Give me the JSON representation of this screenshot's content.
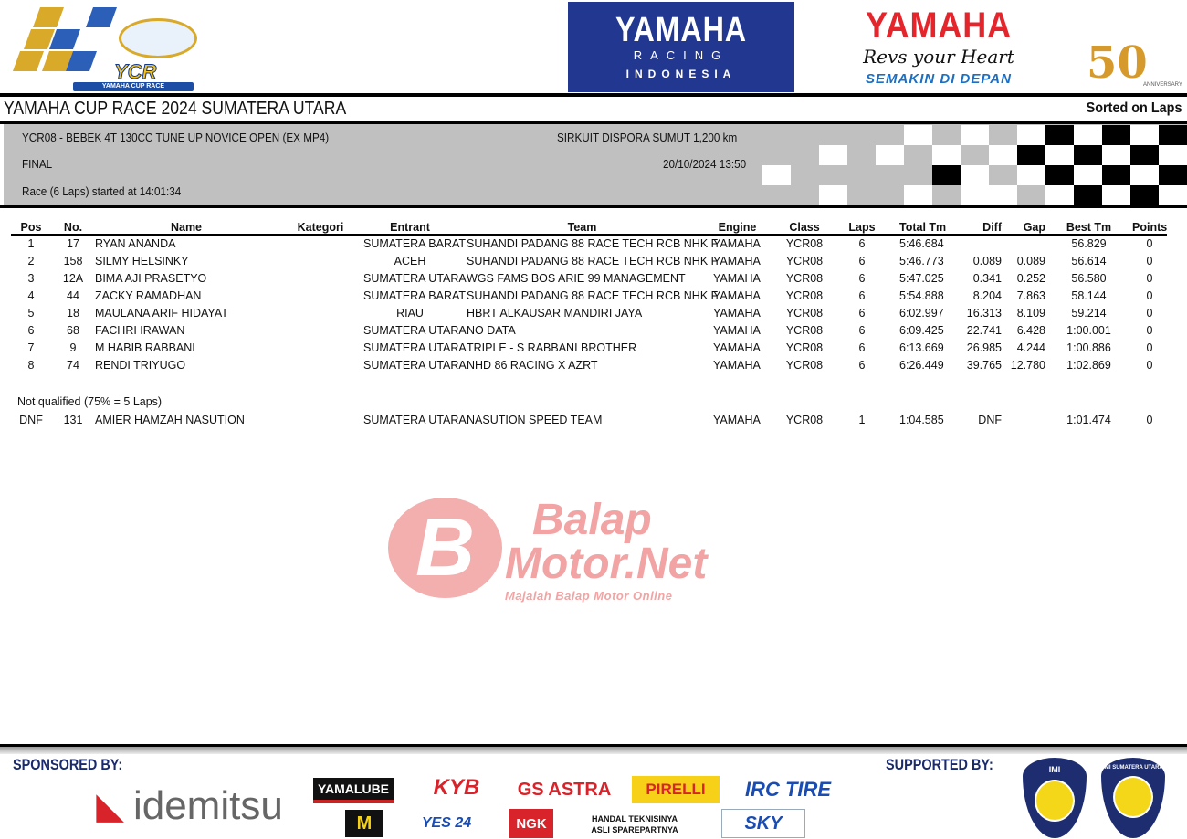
{
  "logos": {
    "ycr": {
      "text": "YCR",
      "subtitle": "YAMAHA CUP RACE"
    },
    "yamaha_racing": {
      "line1": "YAMAHA",
      "line2": "RACING",
      "line3": "INDONESIA"
    },
    "yamaha": {
      "brand": "YAMAHA",
      "tagline": "Revs your Heart",
      "slogan": "SEMAKIN DI DEPAN"
    },
    "anniversary": {
      "number": "50",
      "text": "ANNIVERSARY"
    }
  },
  "header": {
    "title": "YAMAHA CUP RACE 2024 SUMATERA UTARA",
    "sort_label": "Sorted on Laps"
  },
  "race_info": {
    "category": "YCR08 - BEBEK 4T 130CC TUNE UP NOVICE OPEN (EX MP4)",
    "session": "FINAL",
    "start": "Race (6 Laps) started at 14:01:34",
    "circuit": "SIRKUIT DISPORA SUMUT 1,200 km",
    "datetime": "20/10/2024 13:50"
  },
  "table": {
    "columns": [
      "Pos",
      "No.",
      "Name",
      "Kategori",
      "Entrant",
      "Team",
      "Engine",
      "Class",
      "Laps",
      "Total Tm",
      "Diff",
      "Gap",
      "Best Tm",
      "Points"
    ],
    "rows": [
      [
        "1",
        "17",
        "RYAN ANANDA",
        "",
        "SUMATERA BARAT",
        "SUHANDI PADANG 88 RACE TECH RCB NHK F",
        "YAMAHA",
        "YCR08",
        "6",
        "5:46.684",
        "",
        "",
        "56.829",
        "0"
      ],
      [
        "2",
        "158",
        "SILMY HELSINKY",
        "",
        "ACEH",
        "SUHANDI PADANG 88 RACE TECH RCB NHK F",
        "YAMAHA",
        "YCR08",
        "6",
        "5:46.773",
        "0.089",
        "0.089",
        "56.614",
        "0"
      ],
      [
        "3",
        "12A",
        "BIMA AJI PRASETYO",
        "",
        "SUMATERA UTARA",
        "WGS FAMS BOS ARIE 99 MANAGEMENT",
        "YAMAHA",
        "YCR08",
        "6",
        "5:47.025",
        "0.341",
        "0.252",
        "56.580",
        "0"
      ],
      [
        "4",
        "44",
        "ZACKY RAMADHAN",
        "",
        "SUMATERA BARAT",
        "SUHANDI PADANG 88 RACE TECH RCB NHK F",
        "YAMAHA",
        "YCR08",
        "6",
        "5:54.888",
        "8.204",
        "7.863",
        "58.144",
        "0"
      ],
      [
        "5",
        "18",
        "MAULANA ARIF HIDAYAT",
        "",
        "RIAU",
        "HBRT ALKAUSAR MANDIRI JAYA",
        "YAMAHA",
        "YCR08",
        "6",
        "6:02.997",
        "16.313",
        "8.109",
        "59.214",
        "0"
      ],
      [
        "6",
        "68",
        "FACHRI IRAWAN",
        "",
        "SUMATERA UTARA",
        "NO DATA",
        "YAMAHA",
        "YCR08",
        "6",
        "6:09.425",
        "22.741",
        "6.428",
        "1:00.001",
        "0"
      ],
      [
        "7",
        "9",
        "M HABIB RABBANI",
        "",
        "SUMATERA UTARA",
        "TRIPLE - S RABBANI BROTHER",
        "YAMAHA",
        "YCR08",
        "6",
        "6:13.669",
        "26.985",
        "4.244",
        "1:00.886",
        "0"
      ],
      [
        "8",
        "74",
        "RENDI TRIYUGO",
        "",
        "SUMATERA UTARA",
        "NHD 86 RACING X AZRT",
        "YAMAHA",
        "YCR08",
        "6",
        "6:26.449",
        "39.765",
        "12.780",
        "1:02.869",
        "0"
      ]
    ],
    "not_qualified_label": "Not qualified (75% = 5 Laps)",
    "dnf_rows": [
      [
        "DNF",
        "131",
        "AMIER HAMZAH NASUTION",
        "",
        "SUMATERA UTARA",
        "NASUTION SPEED TEAM",
        "YAMAHA",
        "YCR08",
        "1",
        "1:04.585",
        "DNF",
        "",
        "1:01.474",
        "0"
      ]
    ]
  },
  "watermark": {
    "line1": "Balap",
    "line2": "Motor.Net",
    "tagline": "Majalah Balap Motor Online",
    "letter": "B"
  },
  "footer": {
    "sponsored_label": "SPONSORED BY:",
    "supported_label": "SUPPORTED BY:",
    "sponsors": [
      "idemitsu",
      "YAMALUBE",
      "KYB",
      "GS ASTRA",
      "PIRELLI",
      "IRC TIRE",
      "M",
      "YES 24",
      "NGK",
      "HANDAL TEKNISINYA ASLI SPAREPARTNYA",
      "SKY"
    ],
    "supporters": [
      "IMI",
      "IMI SUMATERA UTARA"
    ]
  },
  "colors": {
    "band": "#c0c0c0",
    "yamaha_blue": "#22378f",
    "yamaha_red": "#e4262c",
    "watermark": "#f1a0a0"
  }
}
